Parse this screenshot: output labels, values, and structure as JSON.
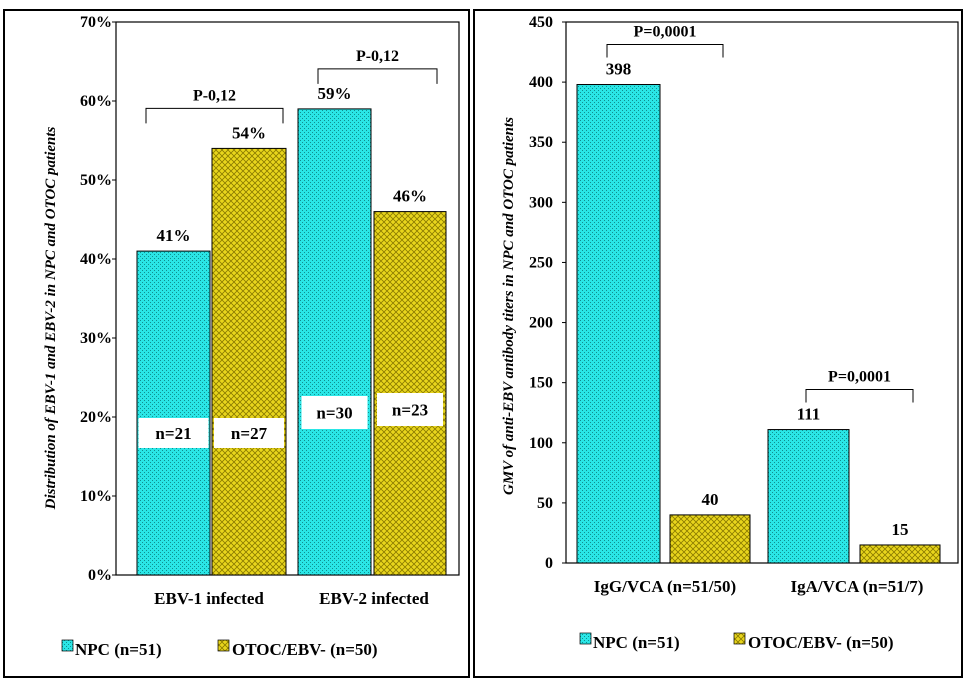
{
  "legend": {
    "npc": "NPC (n=51)",
    "otoc": "OTOC/EBV- (n=50)"
  },
  "colors": {
    "npc_fill": "#2ae6e6",
    "otoc_fill": "#e8d51c",
    "border": "#000000"
  },
  "chart_data": [
    {
      "type": "bar",
      "ylabel": "Distribution of  EBV-1 and EBV-2 in NPC and OTOC patients",
      "ylim": [
        0,
        70
      ],
      "yticks": [
        "0%",
        "10%",
        "20%",
        "30%",
        "40%",
        "50%",
        "60%",
        "70%"
      ],
      "categories": [
        "EBV-1 infected",
        "EBV-2 infected"
      ],
      "series": [
        {
          "name": "NPC (n=51)",
          "values": [
            41,
            59
          ],
          "labels": [
            "41%",
            "59%"
          ],
          "inner_labels": [
            "n=21",
            "n=30"
          ]
        },
        {
          "name": "OTOC/EBV- (n=50)",
          "values": [
            54,
            46
          ],
          "labels": [
            "54%",
            "46%"
          ],
          "inner_labels": [
            "n=27",
            "n=23"
          ]
        }
      ],
      "annotations": [
        "P-0,12",
        "P-0,12"
      ]
    },
    {
      "type": "bar",
      "ylabel": "GMV of anti-EBV antibody titers in NPC and OTOC patients",
      "ylim": [
        0,
        450
      ],
      "yticks": [
        "0",
        "50",
        "100",
        "150",
        "200",
        "250",
        "300",
        "350",
        "400",
        "450"
      ],
      "categories": [
        "IgG/VCA (n=51/50)",
        "IgA/VCA  (n=51/7)"
      ],
      "series": [
        {
          "name": "NPC (n=51)",
          "values": [
            398,
            111
          ],
          "labels": [
            "398",
            "111"
          ]
        },
        {
          "name": "OTOC/EBV- (n=50)",
          "values": [
            40,
            15
          ],
          "labels": [
            "40",
            "15"
          ]
        }
      ],
      "annotations": [
        "P=0,0001",
        "P=0,0001"
      ]
    }
  ]
}
